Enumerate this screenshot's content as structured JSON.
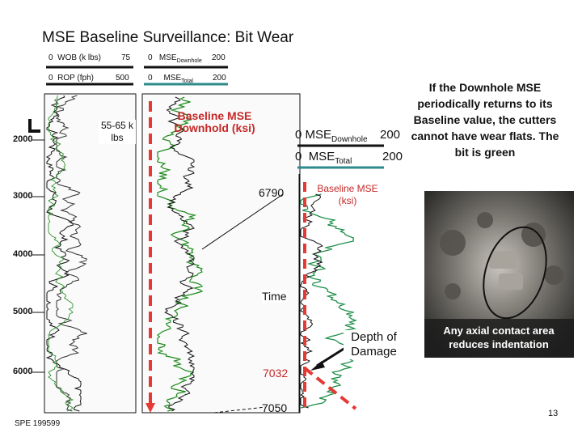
{
  "title": "MSE Baseline Surveillance: Bit Wear",
  "track_headers": {
    "wob": {
      "min": "0",
      "label": "WOB (k lbs)",
      "max": "75"
    },
    "rop": {
      "min": "0",
      "label": "ROP (fph)",
      "max": "500"
    },
    "mse_downhole": {
      "min": "0",
      "label": "MSE",
      "sub": "Downhole",
      "max": "200"
    },
    "mse_total": {
      "min": "0",
      "label": "MSE",
      "sub": "Total",
      "max": "200"
    }
  },
  "depth_labels": [
    "2000",
    "3000",
    "4000",
    "5000",
    "6000"
  ],
  "wob_annotation": "55-65 k lbs",
  "baseline_annotation": "Baseline MSE Downhold (ksi)",
  "zoom_headers": {
    "downhole": {
      "min": "0",
      "label": "MSE",
      "sub": "Downhole",
      "max": "200"
    },
    "total": {
      "min": "0",
      "label": "MSE",
      "sub": "Total",
      "max": "200"
    }
  },
  "zoom_depths": {
    "top": "6790",
    "damage": "7032",
    "bottom": "7050"
  },
  "zoom_baseline_label": "Baseline MSE (ksi)",
  "time_label": "Time",
  "depth_of_damage": "Depth of Damage",
  "note": "If the Downhole MSE periodically returns to its Baseline value, the cutters cannot have wear flats.  The bit is green",
  "photo_caption": "Any axial contact area reduces indentation",
  "footer": {
    "reference": "SPE 199599",
    "page": "13"
  },
  "colors": {
    "baseline": "#e53935",
    "mse_total_trace": "#1b8a1b",
    "downhole_trace": "#1e8f4a",
    "zoom_header_underline_downhole": "#111111",
    "zoom_header_underline_total": "#2e8b8b"
  }
}
